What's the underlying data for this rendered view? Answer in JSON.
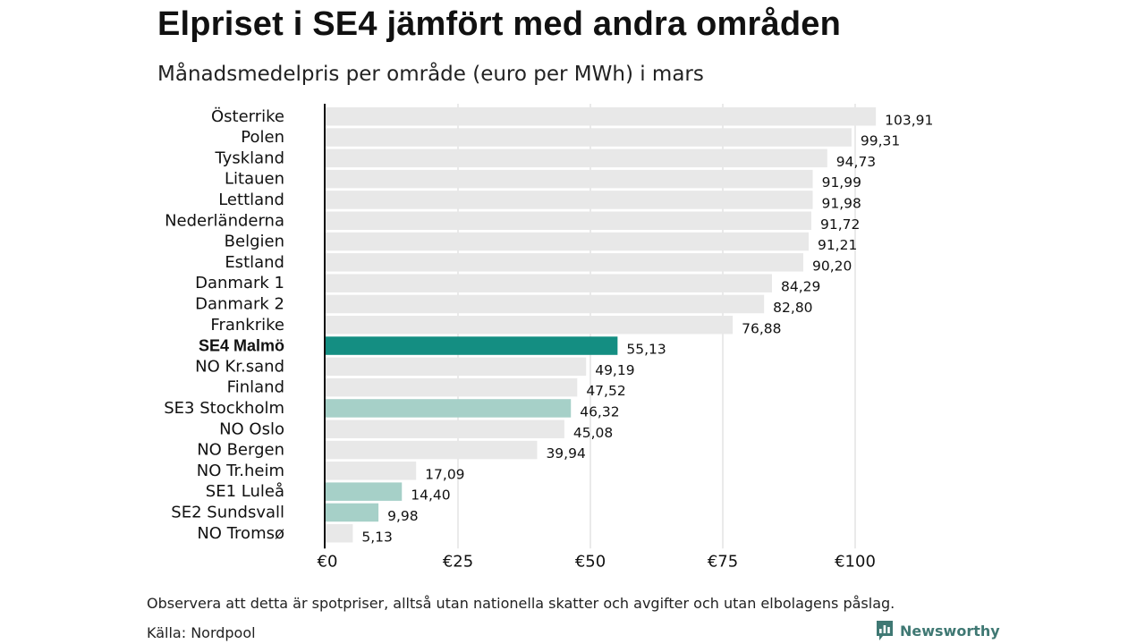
{
  "title": "Elpriset i SE4 jämfört med andra områden",
  "subtitle": "Månadsmedelpris per område (euro per MWh) i mars",
  "footnote": "Observera att detta är spotpriser, alltså utan nationella skatter och avgifter och utan elbolagens påslag.",
  "source": "Källa: Nordpool",
  "brand": "Newsworthy",
  "colors": {
    "bar_default": "#e8e8e8",
    "bar_highlight": "#148e82",
    "bar_swedish": "#a6d0c8",
    "axis": "#111111",
    "grid": "#d4d4d4",
    "brand": "#3f7873"
  },
  "chart_data": {
    "type": "bar",
    "orientation": "horizontal",
    "categories": [
      "Österrike",
      "Polen",
      "Tyskland",
      "Litauen",
      "Lettland",
      "Nederländerna",
      "Belgien",
      "Estland",
      "Danmark  1",
      "Danmark  2",
      "Frankrike",
      "SE4 Malmö",
      "NO Kr.sand",
      "Finland",
      "SE3  Stockholm",
      "NO Oslo",
      "NO Bergen",
      "NO Tr.heim",
      "SE1  Luleå",
      "SE2  Sundsvall",
      "NO Tromsø"
    ],
    "values": [
      103.91,
      99.31,
      94.73,
      91.99,
      91.98,
      91.72,
      91.21,
      90.2,
      84.29,
      82.8,
      76.88,
      55.13,
      49.19,
      47.52,
      46.32,
      45.08,
      39.94,
      17.09,
      14.4,
      9.98,
      5.13
    ],
    "value_labels": [
      "103,91",
      "99,31",
      "94,73",
      "91,99",
      "91,98",
      "91,72",
      "91,21",
      "90,20",
      "84,29",
      "82,80",
      "76,88",
      "55,13",
      "49,19",
      "47,52",
      "46,32",
      "45,08",
      "39,94",
      "17,09",
      "14,40",
      "9,98",
      "5,13"
    ],
    "highlight": [
      "default",
      "default",
      "default",
      "default",
      "default",
      "default",
      "default",
      "default",
      "default",
      "default",
      "default",
      "highlight",
      "default",
      "default",
      "swedish",
      "default",
      "default",
      "default",
      "swedish",
      "swedish",
      "default"
    ],
    "xticks": [
      0,
      25,
      50,
      75,
      100
    ],
    "xtick_labels": [
      "€0",
      "€25",
      "€50",
      "€75",
      "€100"
    ],
    "xlim": [
      0,
      110
    ],
    "grid": true
  }
}
